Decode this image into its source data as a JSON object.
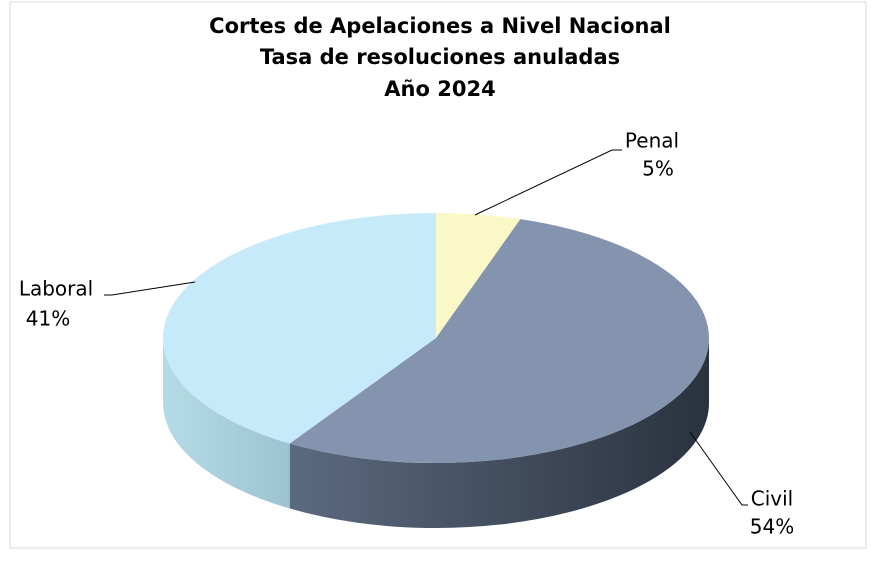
{
  "chart_data": {
    "type": "pie3d",
    "title": [
      "Cortes de Apelaciones a Nivel Nacional",
      "Tasa de resoluciones anuladas",
      "Año 2024"
    ],
    "categories": [
      "Penal",
      "Civil",
      "Laboral"
    ],
    "values": [
      5,
      54,
      41
    ],
    "value_labels": [
      "5%",
      "54%",
      "41%"
    ],
    "colors": [
      "#fbf8c8",
      "#8494ae",
      "#c6eaf9"
    ]
  }
}
